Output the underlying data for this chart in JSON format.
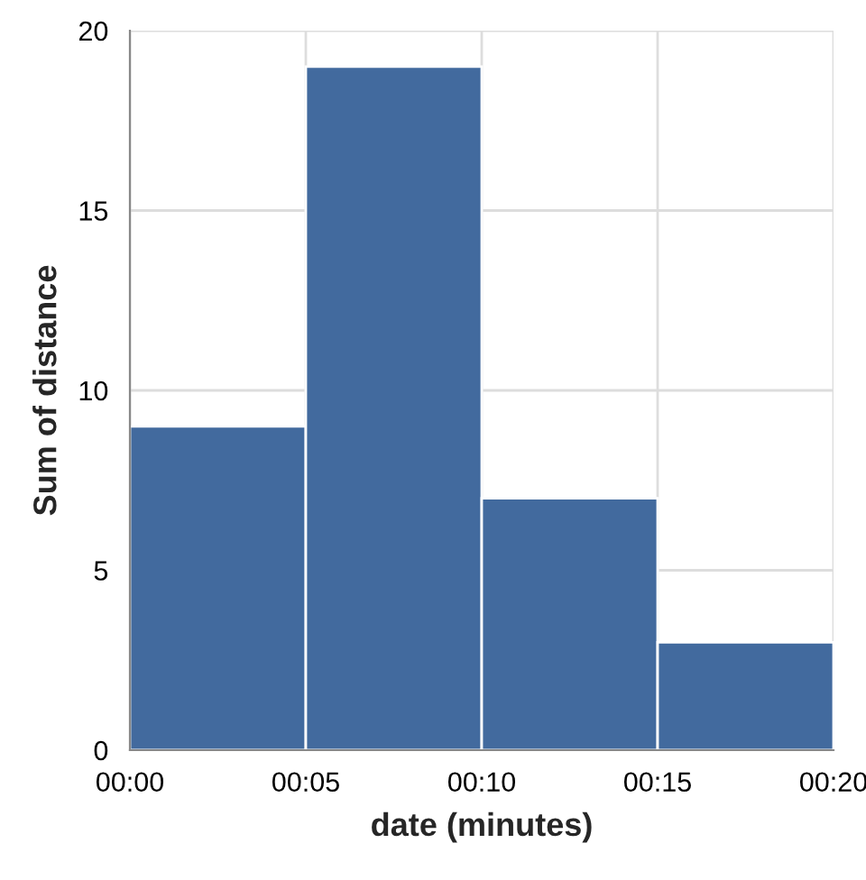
{
  "chart_data": {
    "type": "histogram",
    "xlabel": "date (minutes)",
    "ylabel": "Sum of distance",
    "bins": [
      0,
      5,
      10,
      15,
      20
    ],
    "values": [
      9,
      19,
      7,
      3
    ],
    "color": "#426a9e",
    "xlim": [
      0,
      20
    ],
    "xticks": [
      {
        "value": 0,
        "label": "00:00"
      },
      {
        "value": 5,
        "label": "00:05"
      },
      {
        "value": 10,
        "label": "00:10"
      },
      {
        "value": 15,
        "label": "00:15"
      },
      {
        "value": 20,
        "label": "00:20"
      }
    ],
    "ylim": [
      0,
      20
    ],
    "yticks": [
      0,
      5,
      10,
      15,
      20
    ],
    "grid": true
  }
}
